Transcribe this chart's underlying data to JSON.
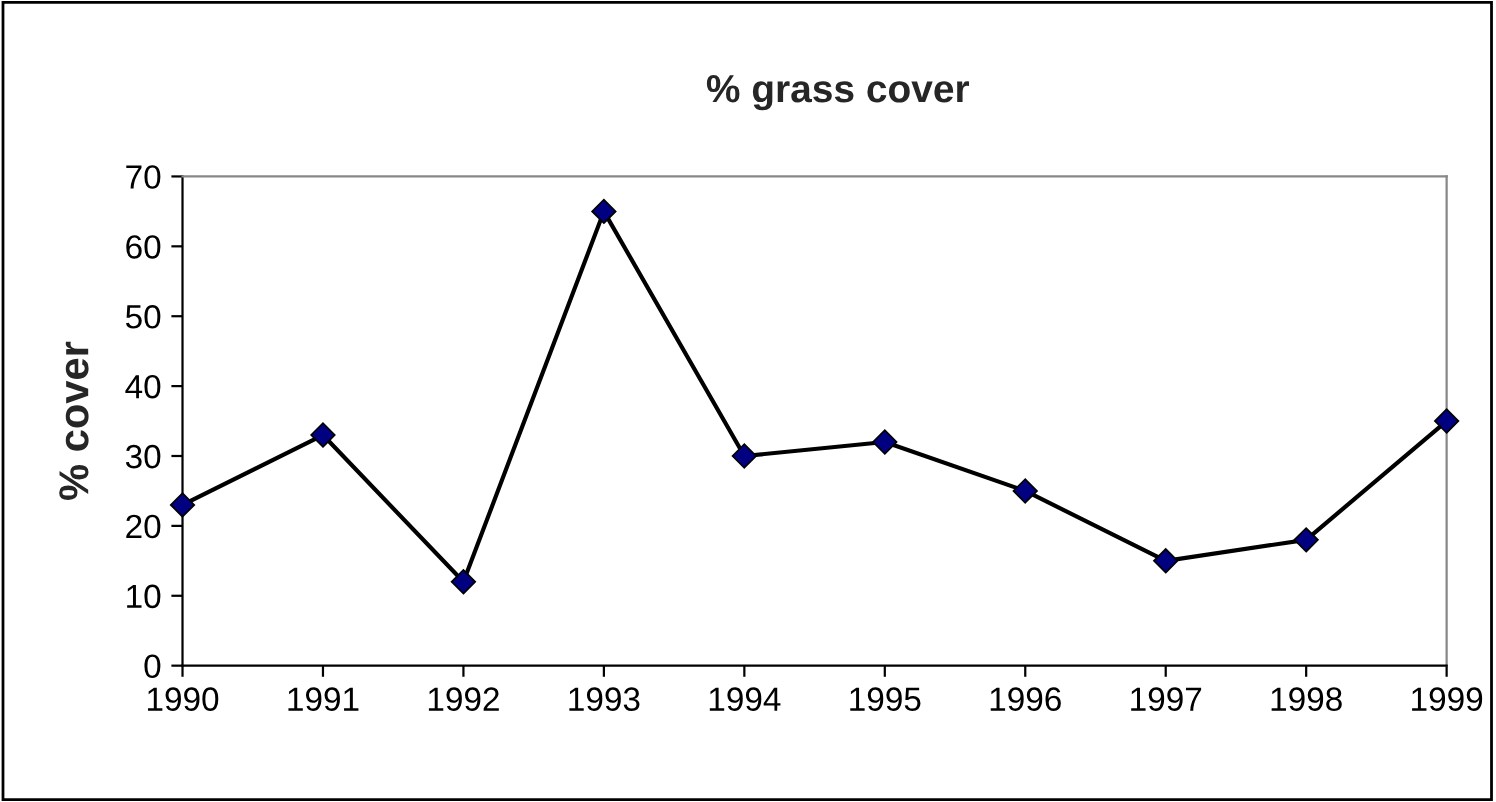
{
  "chart_data": {
    "type": "line",
    "title": "% grass cover",
    "ylabel": "% cover",
    "categories": [
      "1990",
      "1991",
      "1992",
      "1993",
      "1994",
      "1995",
      "1996",
      "1997",
      "1998",
      "1999"
    ],
    "series": [
      {
        "color": "#000080",
        "values": [
          23,
          33,
          12,
          65,
          30,
          32,
          25,
          15,
          18,
          35
        ]
      }
    ],
    "ylim": [
      0,
      70
    ],
    "yticks": [
      0,
      10,
      20,
      30,
      40,
      50,
      60,
      70
    ],
    "grid": false,
    "legend": false,
    "marker": "diamond",
    "line_style": "solid"
  }
}
